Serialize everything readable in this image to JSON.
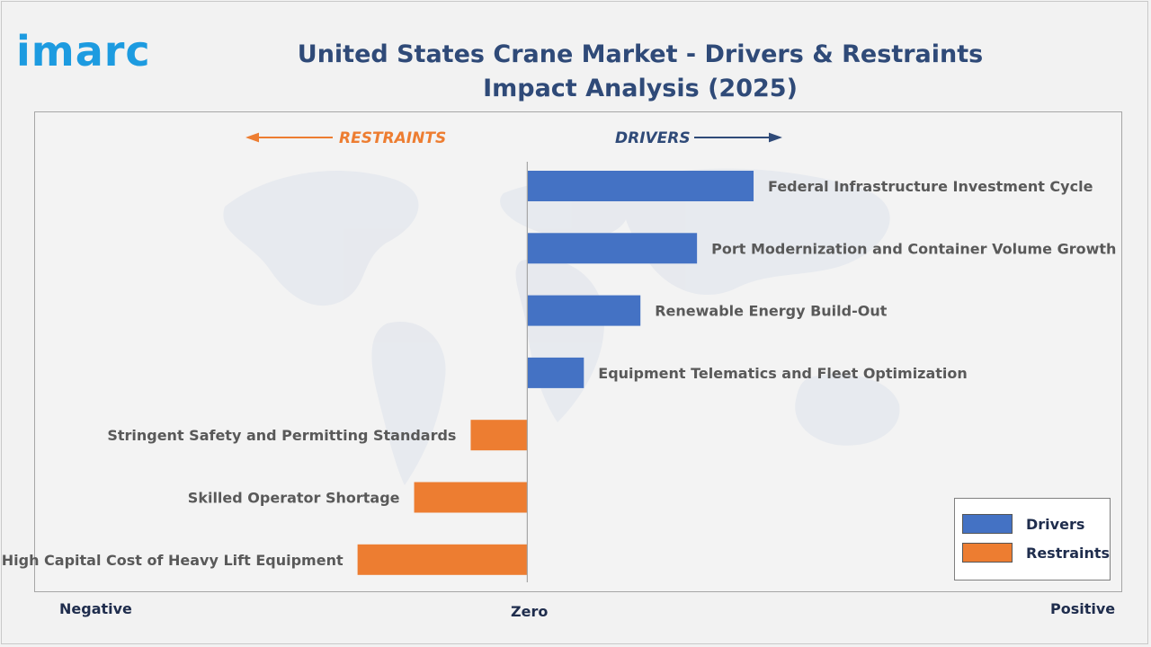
{
  "brand": {
    "logo_text": "imarc"
  },
  "chart_data": {
    "type": "bar",
    "orientation": "horizontal",
    "title": "United States Crane Market - Drivers & Restraints Impact Analysis (2025)",
    "direction_labels": {
      "restraints": "RESTRAINTS",
      "drivers": "DRIVERS"
    },
    "axis_labels": {
      "left": "Negative",
      "center": "Zero",
      "right": "Positive"
    },
    "categories": [
      "Federal Infrastructure Investment Cycle",
      "Port Modernization and Container Volume Growth",
      "Renewable Energy Build-Out",
      "Equipment Telematics and Fleet Optimization",
      "Stringent Safety and Permitting Standards",
      "Skilled Operator Shortage",
      "High Capital Cost of Heavy Lift Equipment"
    ],
    "series": [
      {
        "name": "Drivers",
        "values": [
          4,
          3,
          2,
          1,
          null,
          null,
          null
        ]
      },
      {
        "name": "Restraints",
        "values": [
          null,
          null,
          null,
          null,
          -1,
          -2,
          -3
        ]
      }
    ],
    "xlim": [
      -8.7,
      10.5
    ],
    "legend_position": "bottom-right",
    "colors": {
      "Drivers": "#4472c4",
      "Restraints": "#ed7d31",
      "restraints_label": "#ed7d31",
      "drivers_label": "#2f4a78"
    }
  }
}
